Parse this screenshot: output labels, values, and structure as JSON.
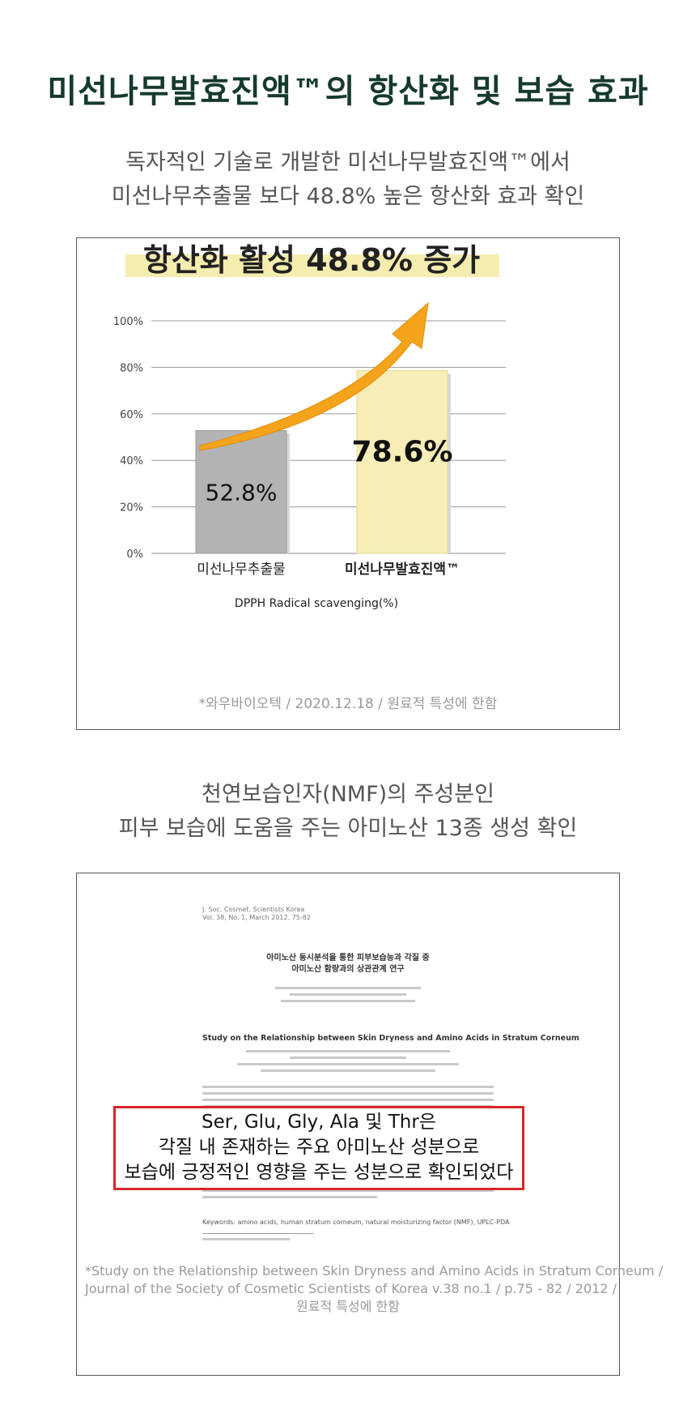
{
  "header": {
    "title": "미선나무발효진액™의 항산화 및 보습 효과"
  },
  "section1": {
    "subtitle_line1": "독자적인 기술로 개발한 미선나무발효진액™에서",
    "subtitle_line2": "미선나무추출물 보다 48.8% 높은 항산화 효과 확인",
    "source": "*와우바이오텍  / 2020.12.18  / 원료적 특성에 한함"
  },
  "chart_data": {
    "type": "bar",
    "title": "항산화 활성 48.8% 증가",
    "categories": [
      "미선나무추출물",
      "미선나무발효진액™"
    ],
    "values": [
      52.8,
      78.6
    ],
    "value_labels": [
      "52.8%",
      "78.6%"
    ],
    "xlabel": "DPPH Radical scavenging(%)",
    "ylabel": "",
    "ylim": [
      0,
      100
    ],
    "yticks": [
      "0%",
      "20%",
      "40%",
      "60%",
      "80%",
      "100%"
    ],
    "grid": true,
    "colors": [
      "#b3b3b3",
      "#f6edb7"
    ],
    "arrow_color": "#f5a31a",
    "highlight_color": "#f5ecb0"
  },
  "section2": {
    "subtitle_line1": "천연보습인자(NMF)의 주성분인",
    "subtitle_line2": "피부 보습에 도움을 주는 아미노산 13종 생성 확인",
    "paper": {
      "journal": "J. Soc. Cosmet. Scientists Korea",
      "volume": "Vol. 38, No. 1, March 2012. 75-82",
      "korean_title_line1": "아미노산 동시분석을 통한 피부보습능과 각질 중",
      "korean_title_line2": "아미노산 함량과의 상관관계 연구",
      "english_title": "Study on the Relationship between Skin Dryness and Amino Acids in Stratum Corneum",
      "keywords": "Keywords: amino acids, human stratum corneum, natural moisturizing factor (NMF), UPLC-PDA"
    },
    "callout_line1": "Ser, Glu, Gly, Ala 및 Thr은",
    "callout_line2": "각질 내 존재하는 주요 아미노산 성분으로",
    "callout_line3": "보습에 긍정적인 영향을 주는 성분으로 확인되었다",
    "source_line1": "*Study on the Relationship between Skin Dryness and Amino Acids in Stratum Corneum /",
    "source_line2": "Journal of the Society of Cosmetic Scientists of Korea v.38 no.1 / p.75 - 82 / 2012 /",
    "source_line3": "원료적 특성에 한함"
  }
}
